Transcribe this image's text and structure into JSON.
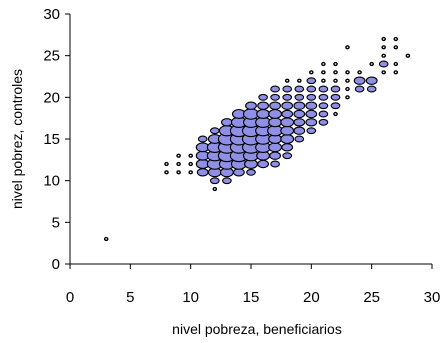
{
  "chart_data": {
    "type": "scatter",
    "title": "",
    "xlabel": "nivel pobreza, beneficiarios",
    "ylabel": "nivel pobrez, controles",
    "xlim": [
      0,
      30
    ],
    "ylim": [
      0,
      30
    ],
    "xticks": [
      "0",
      "5",
      "10",
      "15",
      "20",
      "25",
      "30"
    ],
    "yticks": [
      "0",
      "5",
      "10",
      "15",
      "20",
      "25",
      "30"
    ],
    "grid": false,
    "legend": "none",
    "marker_fill": "#8f8fe6",
    "marker_edge": "#000000",
    "series": [
      {
        "points": [
          {
            "x": 3,
            "y": 3,
            "w": 1
          },
          {
            "x": 8,
            "y": 11,
            "w": 1
          },
          {
            "x": 8,
            "y": 12,
            "w": 1
          },
          {
            "x": 9,
            "y": 11,
            "w": 1
          },
          {
            "x": 9,
            "y": 12,
            "w": 1
          },
          {
            "x": 9,
            "y": 13,
            "w": 1
          },
          {
            "x": 10,
            "y": 11,
            "w": 1
          },
          {
            "x": 10,
            "y": 12,
            "w": 1
          },
          {
            "x": 10,
            "y": 13,
            "w": 1
          },
          {
            "x": 11,
            "y": 11,
            "w": 3
          },
          {
            "x": 11,
            "y": 12,
            "w": 4
          },
          {
            "x": 11,
            "y": 13,
            "w": 4
          },
          {
            "x": 11,
            "y": 14,
            "w": 4
          },
          {
            "x": 11,
            "y": 15,
            "w": 2
          },
          {
            "x": 12,
            "y": 9,
            "w": 1
          },
          {
            "x": 12,
            "y": 10,
            "w": 2
          },
          {
            "x": 12,
            "y": 11,
            "w": 4
          },
          {
            "x": 12,
            "y": 12,
            "w": 5
          },
          {
            "x": 12,
            "y": 13,
            "w": 5
          },
          {
            "x": 12,
            "y": 14,
            "w": 5
          },
          {
            "x": 12,
            "y": 15,
            "w": 4
          },
          {
            "x": 12,
            "y": 16,
            "w": 2
          },
          {
            "x": 13,
            "y": 10,
            "w": 2
          },
          {
            "x": 13,
            "y": 11,
            "w": 4
          },
          {
            "x": 13,
            "y": 12,
            "w": 5
          },
          {
            "x": 13,
            "y": 13,
            "w": 6
          },
          {
            "x": 13,
            "y": 14,
            "w": 6
          },
          {
            "x": 13,
            "y": 15,
            "w": 6
          },
          {
            "x": 13,
            "y": 16,
            "w": 5
          },
          {
            "x": 13,
            "y": 17,
            "w": 3
          },
          {
            "x": 14,
            "y": 11,
            "w": 3
          },
          {
            "x": 14,
            "y": 12,
            "w": 5
          },
          {
            "x": 14,
            "y": 13,
            "w": 6
          },
          {
            "x": 14,
            "y": 14,
            "w": 6
          },
          {
            "x": 14,
            "y": 15,
            "w": 6
          },
          {
            "x": 14,
            "y": 16,
            "w": 6
          },
          {
            "x": 14,
            "y": 17,
            "w": 5
          },
          {
            "x": 14,
            "y": 18,
            "w": 4
          },
          {
            "x": 15,
            "y": 11,
            "w": 2
          },
          {
            "x": 15,
            "y": 12,
            "w": 4
          },
          {
            "x": 15,
            "y": 13,
            "w": 5
          },
          {
            "x": 15,
            "y": 14,
            "w": 6
          },
          {
            "x": 15,
            "y": 15,
            "w": 6
          },
          {
            "x": 15,
            "y": 16,
            "w": 6
          },
          {
            "x": 15,
            "y": 17,
            "w": 5
          },
          {
            "x": 15,
            "y": 18,
            "w": 5
          },
          {
            "x": 15,
            "y": 19,
            "w": 3
          },
          {
            "x": 16,
            "y": 12,
            "w": 3
          },
          {
            "x": 16,
            "y": 13,
            "w": 4
          },
          {
            "x": 16,
            "y": 14,
            "w": 5
          },
          {
            "x": 16,
            "y": 15,
            "w": 5
          },
          {
            "x": 16,
            "y": 16,
            "w": 5
          },
          {
            "x": 16,
            "y": 17,
            "w": 5
          },
          {
            "x": 16,
            "y": 18,
            "w": 4
          },
          {
            "x": 16,
            "y": 19,
            "w": 3
          },
          {
            "x": 16,
            "y": 20,
            "w": 2
          },
          {
            "x": 17,
            "y": 12,
            "w": 2
          },
          {
            "x": 17,
            "y": 13,
            "w": 3
          },
          {
            "x": 17,
            "y": 14,
            "w": 4
          },
          {
            "x": 17,
            "y": 15,
            "w": 4
          },
          {
            "x": 17,
            "y": 16,
            "w": 5
          },
          {
            "x": 17,
            "y": 17,
            "w": 4
          },
          {
            "x": 17,
            "y": 18,
            "w": 4
          },
          {
            "x": 17,
            "y": 19,
            "w": 3
          },
          {
            "x": 17,
            "y": 20,
            "w": 2
          },
          {
            "x": 17,
            "y": 21,
            "w": 2
          },
          {
            "x": 18,
            "y": 13,
            "w": 2
          },
          {
            "x": 18,
            "y": 14,
            "w": 3
          },
          {
            "x": 18,
            "y": 15,
            "w": 4
          },
          {
            "x": 18,
            "y": 16,
            "w": 4
          },
          {
            "x": 18,
            "y": 17,
            "w": 4
          },
          {
            "x": 18,
            "y": 18,
            "w": 3
          },
          {
            "x": 18,
            "y": 19,
            "w": 3
          },
          {
            "x": 18,
            "y": 20,
            "w": 2
          },
          {
            "x": 18,
            "y": 21,
            "w": 2
          },
          {
            "x": 18,
            "y": 22,
            "w": 1
          },
          {
            "x": 19,
            "y": 15,
            "w": 2
          },
          {
            "x": 19,
            "y": 16,
            "w": 3
          },
          {
            "x": 19,
            "y": 17,
            "w": 3
          },
          {
            "x": 19,
            "y": 18,
            "w": 3
          },
          {
            "x": 19,
            "y": 19,
            "w": 3
          },
          {
            "x": 19,
            "y": 20,
            "w": 2
          },
          {
            "x": 19,
            "y": 21,
            "w": 2
          },
          {
            "x": 19,
            "y": 22,
            "w": 1
          },
          {
            "x": 20,
            "y": 16,
            "w": 2
          },
          {
            "x": 20,
            "y": 17,
            "w": 3
          },
          {
            "x": 20,
            "y": 18,
            "w": 3
          },
          {
            "x": 20,
            "y": 19,
            "w": 3
          },
          {
            "x": 20,
            "y": 20,
            "w": 2
          },
          {
            "x": 20,
            "y": 21,
            "w": 2
          },
          {
            "x": 20,
            "y": 22,
            "w": 2
          },
          {
            "x": 20,
            "y": 23,
            "w": 1
          },
          {
            "x": 21,
            "y": 17,
            "w": 2
          },
          {
            "x": 21,
            "y": 18,
            "w": 2
          },
          {
            "x": 21,
            "y": 19,
            "w": 2
          },
          {
            "x": 21,
            "y": 20,
            "w": 2
          },
          {
            "x": 21,
            "y": 21,
            "w": 2
          },
          {
            "x": 21,
            "y": 22,
            "w": 1
          },
          {
            "x": 21,
            "y": 23,
            "w": 1
          },
          {
            "x": 21,
            "y": 24,
            "w": 1
          },
          {
            "x": 22,
            "y": 18,
            "w": 1
          },
          {
            "x": 22,
            "y": 19,
            "w": 2
          },
          {
            "x": 22,
            "y": 20,
            "w": 2
          },
          {
            "x": 22,
            "y": 21,
            "w": 2
          },
          {
            "x": 22,
            "y": 22,
            "w": 1
          },
          {
            "x": 22,
            "y": 23,
            "w": 1
          },
          {
            "x": 22,
            "y": 24,
            "w": 1
          },
          {
            "x": 23,
            "y": 20,
            "w": 1
          },
          {
            "x": 23,
            "y": 21,
            "w": 1
          },
          {
            "x": 23,
            "y": 22,
            "w": 1
          },
          {
            "x": 23,
            "y": 23,
            "w": 1
          },
          {
            "x": 23,
            "y": 26,
            "w": 1
          },
          {
            "x": 24,
            "y": 21,
            "w": 2
          },
          {
            "x": 24,
            "y": 22,
            "w": 3
          },
          {
            "x": 24,
            "y": 23,
            "w": 1
          },
          {
            "x": 25,
            "y": 21,
            "w": 2
          },
          {
            "x": 25,
            "y": 22,
            "w": 3
          },
          {
            "x": 25,
            "y": 24,
            "w": 1
          },
          {
            "x": 26,
            "y": 23,
            "w": 1
          },
          {
            "x": 26,
            "y": 24,
            "w": 2
          },
          {
            "x": 26,
            "y": 25,
            "w": 1
          },
          {
            "x": 26,
            "y": 26,
            "w": 1
          },
          {
            "x": 26,
            "y": 27,
            "w": 1
          },
          {
            "x": 27,
            "y": 23,
            "w": 1
          },
          {
            "x": 27,
            "y": 24,
            "w": 1
          },
          {
            "x": 27,
            "y": 26,
            "w": 1
          },
          {
            "x": 27,
            "y": 27,
            "w": 1
          },
          {
            "x": 28,
            "y": 25,
            "w": 1
          }
        ]
      }
    ]
  }
}
